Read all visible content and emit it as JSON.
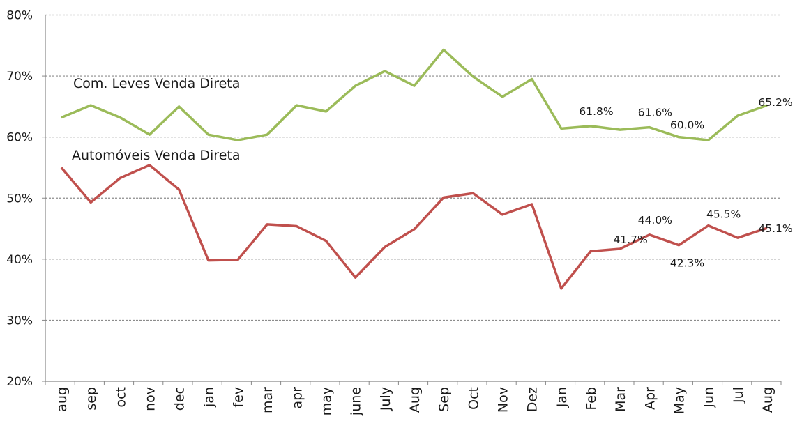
{
  "chart_data": {
    "type": "line",
    "title": "",
    "xlabel": "",
    "ylabel": "",
    "ylim": [
      0.2,
      0.8
    ],
    "yticks": [
      "20%",
      "30%",
      "40%",
      "50%",
      "60%",
      "70%",
      "80%"
    ],
    "grid": "horizontal dashed",
    "categories": [
      "aug",
      "sep",
      "oct",
      "nov",
      "dec",
      "jan",
      "fev",
      "mar",
      "apr",
      "may",
      "june",
      "July",
      "Aug",
      "Sep",
      "Oct",
      "Nov",
      "Dez",
      "Jan",
      "Feb",
      "Mar",
      "Apr",
      "May",
      "Jun",
      "Jul",
      "Aug"
    ],
    "series": [
      {
        "name": "Com. Leves Venda Direta",
        "color": "#9bbb59",
        "values": [
          0.632,
          0.652,
          0.632,
          0.604,
          0.65,
          0.604,
          0.595,
          0.604,
          0.652,
          0.642,
          0.684,
          0.708,
          0.684,
          0.743,
          0.699,
          0.666,
          0.695,
          0.614,
          0.618,
          0.612,
          0.616,
          0.6,
          0.595,
          0.635,
          0.652
        ],
        "data_labels": [
          {
            "index": 18,
            "text": "61.8%"
          },
          {
            "index": 20,
            "text": "61.6%"
          },
          {
            "index": 21,
            "text": "60.0%"
          },
          {
            "index": 24,
            "text": "65.2%"
          }
        ]
      },
      {
        "name": "Automóveis Venda Direta",
        "color": "#c0504d",
        "values": [
          0.55,
          0.493,
          0.533,
          0.554,
          0.514,
          0.398,
          0.399,
          0.457,
          0.454,
          0.43,
          0.37,
          0.42,
          0.449,
          0.501,
          0.508,
          0.473,
          0.49,
          0.352,
          0.413,
          0.417,
          0.44,
          0.423,
          0.455,
          0.435,
          0.451
        ],
        "data_labels": [
          {
            "index": 19,
            "text": "41.7%"
          },
          {
            "index": 20,
            "text": "44.0%"
          },
          {
            "index": 21,
            "text": "42.3%"
          },
          {
            "index": 22,
            "text": "45.5%"
          },
          {
            "index": 24,
            "text": "45.1%"
          }
        ]
      }
    ]
  }
}
